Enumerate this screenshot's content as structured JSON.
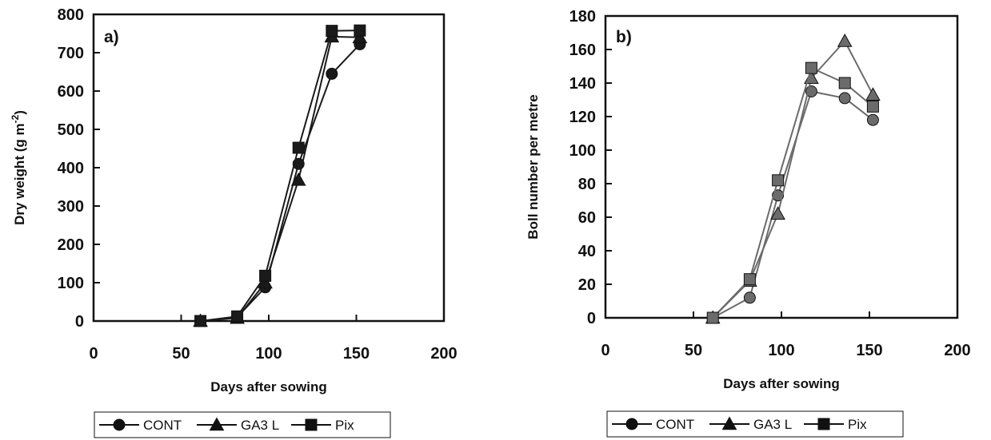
{
  "colors": {
    "panel_a_series": "#1a1a1a",
    "panel_b_series": "#6b6b6b",
    "frame": "#111111"
  },
  "chart_data": [
    {
      "type": "line",
      "panel_label": "a)",
      "xlabel": "Days after sowing",
      "ylabel": "Dry weight (g m⁻²)",
      "ylabel_parts": [
        "Dry weight (g m",
        "-2",
        ")"
      ],
      "xlim": [
        0,
        200
      ],
      "ylim": [
        0,
        800
      ],
      "xticks": [
        0,
        50,
        100,
        150,
        200
      ],
      "yticks": [
        0,
        100,
        200,
        300,
        400,
        500,
        600,
        700,
        800
      ],
      "grid": false,
      "x": [
        61,
        82,
        98,
        117,
        136,
        152
      ],
      "series": [
        {
          "name": "CONT",
          "marker": "circle",
          "values": [
            0,
            10,
            88,
            410,
            645,
            722
          ]
        },
        {
          "name": "GA3 L",
          "marker": "triangle",
          "values": [
            0,
            8,
            100,
            368,
            742,
            740
          ]
        },
        {
          "name": "Pix",
          "marker": "square",
          "values": [
            0,
            12,
            118,
            452,
            757,
            758
          ]
        }
      ],
      "legend": {
        "position": "bottom",
        "entries": [
          "CONT",
          "GA3 L",
          "Pix"
        ]
      }
    },
    {
      "type": "line",
      "panel_label": "b)",
      "xlabel": "Days after sowing",
      "ylabel": "Boll number per metre",
      "xlim": [
        0,
        200
      ],
      "ylim": [
        0,
        180
      ],
      "xticks": [
        0,
        50,
        100,
        150,
        200
      ],
      "yticks": [
        0,
        20,
        40,
        60,
        80,
        100,
        120,
        140,
        160,
        180
      ],
      "grid": false,
      "x": [
        61,
        82,
        98,
        117,
        136,
        152
      ],
      "series": [
        {
          "name": "CONT",
          "marker": "circle",
          "values": [
            0,
            12,
            73,
            135,
            131,
            118
          ]
        },
        {
          "name": "GA3 L",
          "marker": "triangle",
          "values": [
            0,
            22,
            62,
            143,
            165,
            133
          ]
        },
        {
          "name": "Pix",
          "marker": "square",
          "values": [
            0,
            23,
            82,
            149,
            140,
            126
          ]
        }
      ],
      "legend": {
        "position": "bottom",
        "entries": [
          "CONT",
          "GA3 L",
          "Pix"
        ]
      }
    }
  ]
}
